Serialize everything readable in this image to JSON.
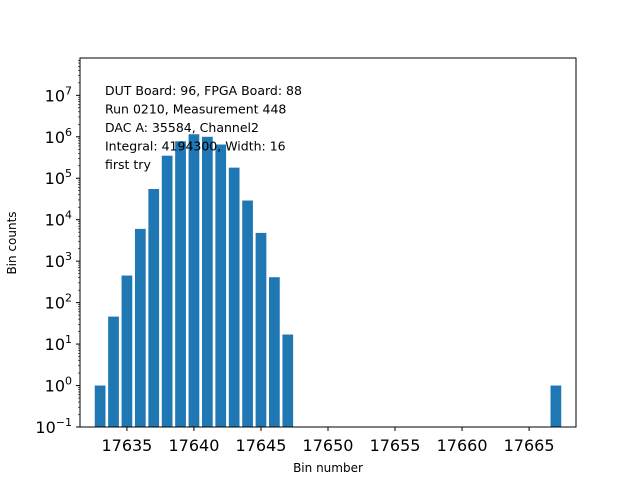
{
  "chart_data": {
    "type": "bar",
    "title": "",
    "xlabel": "Bin number",
    "ylabel": "Bin counts",
    "yscale": "log",
    "xlim": [
      17631.5,
      17668.5
    ],
    "ylim_exp": [
      -1,
      7.9
    ],
    "x_ticks": [
      17635,
      17640,
      17645,
      17650,
      17655,
      17660,
      17665
    ],
    "y_ticks": [
      {
        "exp": -1,
        "label": "10",
        "sup": "−1"
      },
      {
        "exp": 0,
        "label": "10",
        "sup": "0"
      },
      {
        "exp": 1,
        "label": "10",
        "sup": "1"
      },
      {
        "exp": 2,
        "label": "10",
        "sup": "2"
      },
      {
        "exp": 3,
        "label": "10",
        "sup": "3"
      },
      {
        "exp": 4,
        "label": "10",
        "sup": "4"
      },
      {
        "exp": 5,
        "label": "10",
        "sup": "5"
      },
      {
        "exp": 6,
        "label": "10",
        "sup": "6"
      },
      {
        "exp": 7,
        "label": "10",
        "sup": "7"
      }
    ],
    "bar_color": "#1f77b4",
    "bar_width": 0.8,
    "x": [
      17633,
      17634,
      17635,
      17636,
      17637,
      17638,
      17639,
      17640,
      17641,
      17642,
      17643,
      17644,
      17645,
      17646,
      17647,
      17667
    ],
    "values": [
      1,
      46,
      450,
      6000,
      55000,
      350000,
      780000,
      1150000,
      1000000,
      650000,
      180000,
      29000,
      4800,
      410,
      17,
      1
    ],
    "annotations": [
      "DUT Board: 96, FPGA Board: 88",
      "Run 0210, Measurement 448",
      "DAC A: 35584, Channel2",
      "Integral: 4194300, Width: 16",
      "first try"
    ]
  }
}
